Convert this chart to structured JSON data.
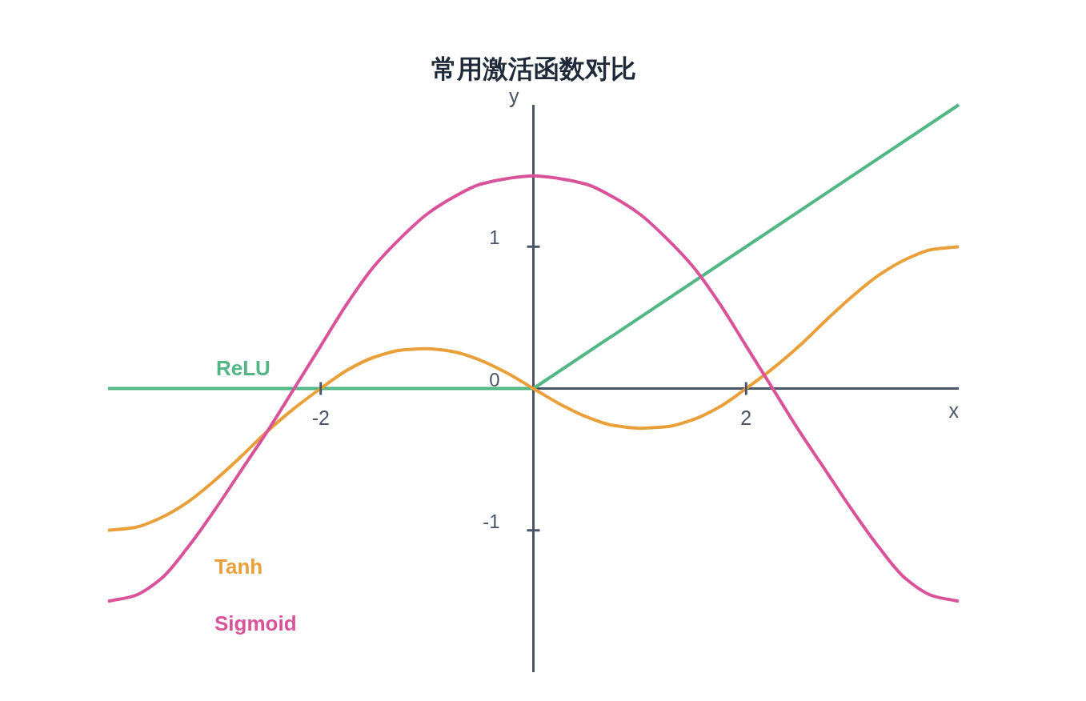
{
  "chart_data": {
    "type": "line",
    "title": "常用激活函数对比",
    "xlabel": "x",
    "ylabel": "y",
    "xlim": [
      -4,
      4
    ],
    "ylim": [
      -2,
      2
    ],
    "xticks": [
      -2,
      2
    ],
    "yticks": [
      -1,
      0,
      1
    ],
    "line_style": "solid",
    "series": [
      {
        "name": "ReLU",
        "color": "#52b685",
        "x": [
          -4,
          0,
          4
        ],
        "values": [
          0,
          0,
          2
        ]
      },
      {
        "name": "Tanh",
        "color": "#e9a03b",
        "x": [
          -4,
          -3.75,
          -3.5,
          -3.25,
          -3,
          -2.75,
          -2.5,
          -2.25,
          -2,
          -1.75,
          -1.5,
          -1.25,
          -1,
          -0.75,
          -0.5,
          -0.25,
          0,
          0.25,
          0.5,
          0.75,
          1,
          1.25,
          1.5,
          1.75,
          2,
          2.25,
          2.5,
          2.75,
          3,
          3.25,
          3.5,
          3.75,
          4
        ],
        "values": [
          -1.0,
          -0.98,
          -0.91,
          -0.8,
          -0.65,
          -0.48,
          -0.3,
          -0.14,
          0.0,
          0.13,
          0.22,
          0.27,
          0.28,
          0.26,
          0.2,
          0.11,
          0,
          -0.11,
          -0.2,
          -0.26,
          -0.28,
          -0.27,
          -0.22,
          -0.13,
          0.0,
          0.14,
          0.3,
          0.48,
          0.65,
          0.8,
          0.91,
          0.98,
          1.0
        ]
      },
      {
        "name": "Sigmoid",
        "color": "#d9539a",
        "x": [
          -4,
          -3.75,
          -3.5,
          -3.25,
          -3,
          -2.75,
          -2.5,
          -2.25,
          -2,
          -1.75,
          -1.5,
          -1.25,
          -1,
          -0.75,
          -0.5,
          -0.25,
          0,
          0.25,
          0.5,
          0.75,
          1,
          1.25,
          1.5,
          1.75,
          2,
          2.25,
          2.5,
          2.75,
          3,
          3.25,
          3.5,
          3.75,
          4
        ],
        "values": [
          -1.5,
          -1.46,
          -1.34,
          -1.12,
          -0.86,
          -0.58,
          -0.3,
          0.0,
          0.3,
          0.6,
          0.86,
          1.06,
          1.23,
          1.35,
          1.44,
          1.48,
          1.5,
          1.48,
          1.44,
          1.35,
          1.23,
          1.06,
          0.86,
          0.6,
          0.3,
          0.0,
          -0.3,
          -0.58,
          -0.86,
          -1.12,
          -1.34,
          -1.46,
          -1.5
        ]
      }
    ]
  }
}
